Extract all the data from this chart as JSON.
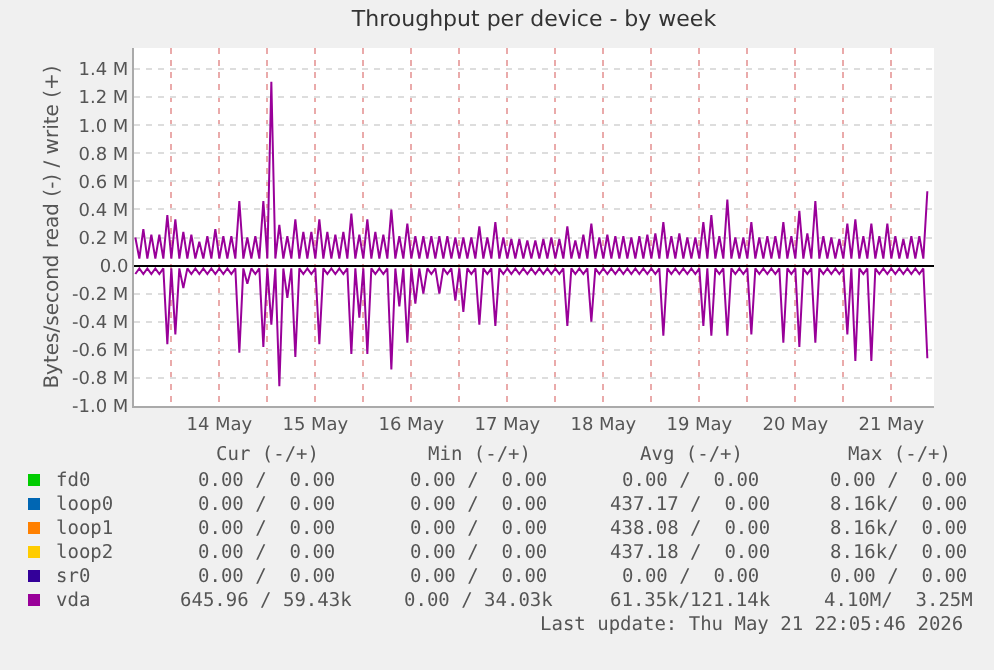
{
  "chart_data": {
    "type": "line",
    "title": "Throughput per device - by week",
    "ylabel": "Bytes/second read (-) / write (+)",
    "xlim": [
      "2026-05-13T14:40",
      "2026-05-21T22:40"
    ],
    "xticks": [
      {
        "value": "2026-05-14T00:00",
        "label": null
      },
      {
        "value": "2026-05-14T12:00",
        "label": "14 May"
      },
      {
        "value": "2026-05-15T00:00",
        "label": null
      },
      {
        "value": "2026-05-15T12:00",
        "label": "15 May"
      },
      {
        "value": "2026-05-16T00:00",
        "label": null
      },
      {
        "value": "2026-05-16T12:00",
        "label": "16 May"
      },
      {
        "value": "2026-05-17T00:00",
        "label": null
      },
      {
        "value": "2026-05-17T12:00",
        "label": "17 May"
      },
      {
        "value": "2026-05-18T00:00",
        "label": null
      },
      {
        "value": "2026-05-18T12:00",
        "label": "18 May"
      },
      {
        "value": "2026-05-19T00:00",
        "label": null
      },
      {
        "value": "2026-05-19T12:00",
        "label": "19 May"
      },
      {
        "value": "2026-05-20T00:00",
        "label": null
      },
      {
        "value": "2026-05-20T12:00",
        "label": "20 May"
      },
      {
        "value": "2026-05-21T00:00",
        "label": null
      },
      {
        "value": "2026-05-21T12:00",
        "label": "21 May"
      }
    ],
    "ylim": [
      -1.0,
      1.55
    ],
    "yticks": [
      {
        "value": -1.0,
        "label": "-1.0 M"
      },
      {
        "value": -0.8,
        "label": "-0.8 M"
      },
      {
        "value": -0.6,
        "label": "-0.6 M"
      },
      {
        "value": -0.4,
        "label": "-0.4 M"
      },
      {
        "value": -0.2,
        "label": "-0.2 M"
      },
      {
        "value": 0,
        "label": "0.0"
      },
      {
        "value": 0.2,
        "label": "0.2 M"
      },
      {
        "value": 0.4,
        "label": "0.4 M"
      },
      {
        "value": 0.6,
        "label": "0.6 M"
      },
      {
        "value": 0.8,
        "label": "0.8 M"
      },
      {
        "value": 1.0,
        "label": "1.0 M"
      },
      {
        "value": 1.2,
        "label": "1.2 M"
      },
      {
        "value": 1.4,
        "label": "1.4 M"
      }
    ],
    "grid": true,
    "legend": "bottom left",
    "x": [
      "2026-05-13T15:00",
      "2026-05-13T16:00",
      "2026-05-13T17:00",
      "2026-05-13T18:00",
      "2026-05-13T19:00",
      "2026-05-13T20:00",
      "2026-05-13T21:00",
      "2026-05-13T22:00",
      "2026-05-13T23:00",
      "2026-05-14T00:00",
      "2026-05-14T01:00",
      "2026-05-14T02:00",
      "2026-05-14T03:00",
      "2026-05-14T04:00",
      "2026-05-14T05:00",
      "2026-05-14T06:00",
      "2026-05-14T07:00",
      "2026-05-14T08:00",
      "2026-05-14T09:00",
      "2026-05-14T10:00",
      "2026-05-14T11:00",
      "2026-05-14T12:00",
      "2026-05-14T13:00",
      "2026-05-14T14:00",
      "2026-05-14T15:00",
      "2026-05-14T16:00",
      "2026-05-14T17:00",
      "2026-05-14T18:00",
      "2026-05-14T19:00",
      "2026-05-14T20:00",
      "2026-05-14T21:00",
      "2026-05-14T22:00",
      "2026-05-14T23:00",
      "2026-05-15T00:00",
      "2026-05-15T01:00",
      "2026-05-15T02:00",
      "2026-05-15T03:00",
      "2026-05-15T04:00",
      "2026-05-15T05:00",
      "2026-05-15T06:00",
      "2026-05-15T07:00",
      "2026-05-15T08:00",
      "2026-05-15T09:00",
      "2026-05-15T10:00",
      "2026-05-15T11:00",
      "2026-05-15T12:00",
      "2026-05-15T13:00",
      "2026-05-15T14:00",
      "2026-05-15T15:00",
      "2026-05-15T16:00",
      "2026-05-15T17:00",
      "2026-05-15T18:00",
      "2026-05-15T19:00",
      "2026-05-15T20:00",
      "2026-05-15T21:00",
      "2026-05-15T22:00",
      "2026-05-15T23:00",
      "2026-05-16T00:00",
      "2026-05-16T01:00",
      "2026-05-16T02:00",
      "2026-05-16T03:00",
      "2026-05-16T04:00",
      "2026-05-16T05:00",
      "2026-05-16T06:00",
      "2026-05-16T07:00",
      "2026-05-16T08:00",
      "2026-05-16T09:00",
      "2026-05-16T10:00",
      "2026-05-16T11:00",
      "2026-05-16T12:00",
      "2026-05-16T13:00",
      "2026-05-16T14:00",
      "2026-05-16T15:00",
      "2026-05-16T16:00",
      "2026-05-16T17:00",
      "2026-05-16T18:00",
      "2026-05-16T19:00",
      "2026-05-16T20:00",
      "2026-05-16T21:00",
      "2026-05-16T22:00",
      "2026-05-16T23:00",
      "2026-05-17T00:00",
      "2026-05-17T01:00",
      "2026-05-17T02:00",
      "2026-05-17T03:00",
      "2026-05-17T04:00",
      "2026-05-17T05:00",
      "2026-05-17T06:00",
      "2026-05-17T07:00",
      "2026-05-17T08:00",
      "2026-05-17T09:00",
      "2026-05-17T10:00",
      "2026-05-17T11:00",
      "2026-05-17T12:00",
      "2026-05-17T13:00",
      "2026-05-17T14:00",
      "2026-05-17T15:00",
      "2026-05-17T16:00",
      "2026-05-17T17:00",
      "2026-05-17T18:00",
      "2026-05-17T19:00",
      "2026-05-17T20:00",
      "2026-05-17T21:00",
      "2026-05-17T22:00",
      "2026-05-17T23:00",
      "2026-05-18T00:00",
      "2026-05-18T01:00",
      "2026-05-18T02:00",
      "2026-05-18T03:00",
      "2026-05-18T04:00",
      "2026-05-18T05:00",
      "2026-05-18T06:00",
      "2026-05-18T07:00",
      "2026-05-18T08:00",
      "2026-05-18T09:00",
      "2026-05-18T10:00",
      "2026-05-18T11:00",
      "2026-05-18T12:00",
      "2026-05-18T13:00",
      "2026-05-18T14:00",
      "2026-05-18T15:00",
      "2026-05-18T16:00",
      "2026-05-18T17:00",
      "2026-05-18T18:00",
      "2026-05-18T19:00",
      "2026-05-18T20:00",
      "2026-05-18T21:00",
      "2026-05-18T22:00",
      "2026-05-18T23:00",
      "2026-05-19T00:00",
      "2026-05-19T01:00",
      "2026-05-19T02:00",
      "2026-05-19T03:00",
      "2026-05-19T04:00",
      "2026-05-19T05:00",
      "2026-05-19T06:00",
      "2026-05-19T07:00",
      "2026-05-19T08:00",
      "2026-05-19T09:00",
      "2026-05-19T10:00",
      "2026-05-19T11:00",
      "2026-05-19T12:00",
      "2026-05-19T13:00",
      "2026-05-19T14:00",
      "2026-05-19T15:00",
      "2026-05-19T16:00",
      "2026-05-19T17:00",
      "2026-05-19T18:00",
      "2026-05-19T19:00",
      "2026-05-19T20:00",
      "2026-05-19T21:00",
      "2026-05-19T22:00",
      "2026-05-19T23:00",
      "2026-05-20T00:00",
      "2026-05-20T01:00",
      "2026-05-20T02:00",
      "2026-05-20T03:00",
      "2026-05-20T04:00",
      "2026-05-20T05:00",
      "2026-05-20T06:00",
      "2026-05-20T07:00",
      "2026-05-20T08:00",
      "2026-05-20T09:00",
      "2026-05-20T10:00",
      "2026-05-20T11:00",
      "2026-05-20T12:00",
      "2026-05-20T13:00",
      "2026-05-20T14:00",
      "2026-05-20T15:00",
      "2026-05-20T16:00",
      "2026-05-20T17:00",
      "2026-05-20T18:00",
      "2026-05-20T19:00",
      "2026-05-20T20:00",
      "2026-05-20T21:00",
      "2026-05-20T22:00",
      "2026-05-20T23:00",
      "2026-05-21T00:00",
      "2026-05-21T01:00",
      "2026-05-21T02:00",
      "2026-05-21T03:00",
      "2026-05-21T04:00",
      "2026-05-21T05:00",
      "2026-05-21T06:00",
      "2026-05-21T07:00",
      "2026-05-21T08:00",
      "2026-05-21T09:00",
      "2026-05-21T10:00",
      "2026-05-21T11:00",
      "2026-05-21T12:00",
      "2026-05-21T13:00",
      "2026-05-21T14:00",
      "2026-05-21T15:00",
      "2026-05-21T16:00",
      "2026-05-21T17:00",
      "2026-05-21T18:00",
      "2026-05-21T19:00",
      "2026-05-21T20:00",
      "2026-05-21T21:00"
    ],
    "series": [
      {
        "name": "fd0",
        "color": "#00cc00",
        "values": [
          null,
          null,
          null,
          null,
          null,
          null,
          null,
          null,
          null,
          null,
          null,
          null,
          null,
          null,
          null,
          null,
          null,
          null,
          null,
          null,
          null,
          null,
          null,
          null,
          null,
          null,
          null,
          null,
          null,
          null,
          null,
          null,
          null,
          null,
          null,
          null,
          null,
          null,
          null,
          null,
          null,
          null,
          null,
          null,
          null,
          null,
          null,
          null,
          null,
          null,
          null,
          null,
          null,
          null,
          null,
          null,
          null,
          null,
          null,
          null,
          null,
          null,
          null,
          null,
          null,
          null,
          null,
          null,
          null,
          null,
          null,
          null,
          null,
          null,
          null,
          null,
          null,
          null,
          null,
          null,
          null,
          null,
          null,
          null,
          null,
          null,
          null,
          null,
          null,
          null,
          null,
          null,
          null,
          null,
          null,
          null,
          null,
          null,
          null,
          null,
          null,
          null,
          null,
          null,
          null,
          null,
          null,
          null,
          null,
          null,
          null,
          null,
          null,
          null,
          null,
          null,
          null,
          null,
          null,
          null,
          null,
          null,
          null,
          null,
          null,
          null,
          null,
          null,
          null,
          null,
          null,
          null,
          null,
          null,
          null,
          null,
          null,
          null,
          null,
          null,
          null,
          null,
          null,
          null,
          null,
          null,
          null,
          null,
          null,
          null,
          null,
          null,
          null,
          null,
          null,
          null,
          null,
          null,
          null,
          null,
          null,
          null,
          null,
          null,
          null,
          null,
          null,
          null,
          null,
          null,
          null,
          null,
          null,
          null,
          null,
          null,
          null,
          null,
          null,
          null,
          null,
          null,
          null,
          null,
          null,
          null,
          null,
          null,
          null,
          null,
          null,
          null,
          null,
          null,
          null,
          null,
          null,
          null,
          null
        ]
      },
      {
        "name": "loop0",
        "color": "#0066b3",
        "values": [
          null,
          null,
          null,
          null,
          null,
          null,
          null,
          null,
          null,
          null,
          null,
          null,
          null,
          null,
          null,
          null,
          null,
          null,
          null,
          null,
          null,
          null,
          null,
          null,
          null,
          null,
          null,
          null,
          null,
          null,
          null,
          null,
          null,
          null,
          null,
          null,
          null,
          null,
          null,
          null,
          null,
          null,
          null,
          null,
          null,
          null,
          null,
          null,
          null,
          null,
          null,
          null,
          null,
          null,
          null,
          null,
          null,
          null,
          null,
          null,
          null,
          null,
          null,
          null,
          null,
          null,
          null,
          null,
          null,
          null,
          null,
          null,
          null,
          null,
          null,
          null,
          null,
          null,
          null,
          null,
          null,
          null,
          null,
          null,
          null,
          null,
          null,
          null,
          null,
          null,
          null,
          null,
          null,
          null,
          null,
          null,
          null,
          null,
          null,
          null,
          null,
          null,
          null,
          null,
          null,
          null,
          null,
          null,
          null,
          null,
          null,
          null,
          null,
          null,
          null,
          null,
          null,
          null,
          null,
          null,
          null,
          null,
          null,
          null,
          null,
          null,
          null,
          null,
          null,
          null,
          null,
          null,
          null,
          null,
          null,
          null,
          null,
          null,
          null,
          null,
          null,
          null,
          null,
          null,
          null,
          null,
          null,
          null,
          null,
          null,
          null,
          null,
          null,
          null,
          null,
          null,
          null,
          null,
          null,
          null,
          null,
          null,
          null,
          null,
          null,
          null,
          null,
          null,
          null,
          null,
          null,
          null,
          null,
          null,
          null,
          null,
          null,
          null,
          null,
          null,
          null,
          null,
          null,
          null,
          null,
          null,
          null,
          null,
          null,
          null,
          null,
          null,
          null,
          null,
          null,
          null,
          null,
          null,
          null
        ]
      },
      {
        "name": "loop1",
        "color": "#ff8000",
        "values": [
          null,
          null,
          null,
          null,
          null,
          null,
          null,
          null,
          null,
          null,
          null,
          null,
          null,
          null,
          null,
          null,
          null,
          null,
          null,
          null,
          null,
          null,
          null,
          null,
          null,
          null,
          null,
          null,
          null,
          null,
          null,
          null,
          null,
          null,
          null,
          null,
          null,
          null,
          null,
          null,
          null,
          null,
          null,
          null,
          null,
          null,
          null,
          null,
          null,
          null,
          null,
          null,
          null,
          null,
          null,
          null,
          null,
          null,
          null,
          null,
          null,
          null,
          null,
          null,
          null,
          null,
          null,
          null,
          null,
          null,
          null,
          null,
          null,
          null,
          null,
          null,
          null,
          null,
          null,
          null,
          null,
          null,
          null,
          null,
          null,
          null,
          null,
          null,
          null,
          null,
          null,
          null,
          null,
          null,
          null,
          null,
          null,
          null,
          null,
          null,
          null,
          null,
          null,
          null,
          null,
          null,
          null,
          null,
          null,
          null,
          null,
          null,
          null,
          null,
          null,
          null,
          null,
          null,
          null,
          null,
          null,
          null,
          null,
          null,
          null,
          null,
          null,
          null,
          null,
          null,
          null,
          null,
          null,
          null,
          null,
          null,
          null,
          null,
          null,
          null,
          null,
          null,
          null,
          null,
          null,
          null,
          null,
          null,
          null,
          null,
          null,
          null,
          null,
          null,
          null,
          null,
          null,
          null,
          null,
          null,
          null,
          null,
          null,
          null,
          null,
          null,
          null,
          null,
          null,
          null,
          null,
          null,
          null,
          null,
          null,
          null,
          null,
          null,
          null,
          null,
          null,
          null,
          null,
          null,
          null,
          null,
          null,
          null,
          null,
          null,
          null,
          null,
          null,
          null,
          null,
          null,
          null,
          null,
          null
        ]
      },
      {
        "name": "loop2",
        "color": "#ffcc00",
        "values": [
          null,
          null,
          null,
          null,
          null,
          null,
          null,
          null,
          null,
          null,
          null,
          null,
          null,
          null,
          null,
          null,
          null,
          null,
          null,
          null,
          null,
          null,
          null,
          null,
          null,
          null,
          null,
          null,
          null,
          null,
          null,
          null,
          null,
          null,
          null,
          null,
          null,
          null,
          null,
          null,
          null,
          null,
          null,
          null,
          null,
          null,
          null,
          null,
          null,
          null,
          null,
          null,
          null,
          null,
          null,
          null,
          null,
          null,
          null,
          null,
          null,
          null,
          null,
          null,
          null,
          null,
          null,
          null,
          null,
          null,
          null,
          null,
          null,
          null,
          null,
          null,
          null,
          null,
          null,
          null,
          null,
          null,
          null,
          null,
          null,
          null,
          null,
          null,
          null,
          null,
          null,
          null,
          null,
          null,
          null,
          null,
          null,
          null,
          null,
          null,
          null,
          null,
          null,
          null,
          null,
          null,
          null,
          null,
          null,
          null,
          null,
          null,
          null,
          null,
          null,
          null,
          null,
          null,
          null,
          null,
          null,
          null,
          null,
          null,
          null,
          null,
          null,
          null,
          null,
          null,
          null,
          null,
          null,
          null,
          null,
          null,
          null,
          null,
          null,
          null,
          null,
          null,
          null,
          null,
          null,
          null,
          null,
          null,
          null,
          null,
          null,
          null,
          null,
          null,
          null,
          null,
          null,
          null,
          null,
          null,
          null,
          null,
          null,
          null,
          null,
          null,
          null,
          null,
          null,
          null,
          null,
          null,
          null,
          null,
          null,
          null,
          null,
          null,
          null,
          null,
          null,
          null,
          null,
          null,
          null,
          null,
          null,
          null,
          null,
          null,
          null,
          null,
          null,
          null,
          null,
          null,
          null,
          null,
          null
        ]
      },
      {
        "name": "sr0",
        "color": "#330099",
        "values": [
          null,
          null,
          null,
          null,
          null,
          null,
          null,
          null,
          null,
          null,
          null,
          null,
          null,
          null,
          null,
          null,
          null,
          null,
          null,
          null,
          null,
          null,
          null,
          null,
          null,
          null,
          null,
          null,
          null,
          null,
          null,
          null,
          null,
          null,
          null,
          null,
          null,
          null,
          null,
          null,
          null,
          null,
          null,
          null,
          null,
          null,
          null,
          null,
          null,
          null,
          null,
          null,
          null,
          null,
          null,
          null,
          null,
          null,
          null,
          null,
          null,
          null,
          null,
          null,
          null,
          null,
          null,
          null,
          null,
          null,
          null,
          null,
          null,
          null,
          null,
          null,
          null,
          null,
          null,
          null,
          null,
          null,
          null,
          null,
          null,
          null,
          null,
          null,
          null,
          null,
          null,
          null,
          null,
          null,
          null,
          null,
          null,
          null,
          null,
          null,
          null,
          null,
          null,
          null,
          null,
          null,
          null,
          null,
          null,
          null,
          null,
          null,
          null,
          null,
          null,
          null,
          null,
          null,
          null,
          null,
          null,
          null,
          null,
          null,
          null,
          null,
          null,
          null,
          null,
          null,
          null,
          null,
          null,
          null,
          null,
          null,
          null,
          null,
          null,
          null,
          null,
          null,
          null,
          null,
          null,
          null,
          null,
          null,
          null,
          null,
          null,
          null,
          null,
          null,
          null,
          null,
          null,
          null,
          null,
          null,
          null,
          null,
          null,
          null,
          null,
          null,
          null,
          null,
          null,
          null,
          null,
          null,
          null,
          null,
          null,
          null,
          null,
          null,
          null,
          null,
          null,
          null,
          null,
          null,
          null,
          null,
          null,
          null,
          null,
          null,
          null,
          null,
          null,
          null,
          null,
          null,
          null,
          null,
          null
        ]
      },
      {
        "name": "vda",
        "color": "#990099",
        "values": [
          0.2,
          0.05,
          0.26,
          0.05,
          0.22,
          0.05,
          0.22,
          0.05,
          0.36,
          0.05,
          0.33,
          0.05,
          0.24,
          0.05,
          0.22,
          0.05,
          0.17,
          0.05,
          0.21,
          0.05,
          0.26,
          0.05,
          0.21,
          0.05,
          0.21,
          0.05,
          0.46,
          0.05,
          0.2,
          0.05,
          0.21,
          0.05,
          0.46,
          0.05,
          1.31,
          0.05,
          0.29,
          0.05,
          0.21,
          0.05,
          0.33,
          0.05,
          0.24,
          0.05,
          0.24,
          0.05,
          0.33,
          0.05,
          0.24,
          0.05,
          0.22,
          0.05,
          0.24,
          0.05,
          0.37,
          0.05,
          0.22,
          0.05,
          0.33,
          0.05,
          0.24,
          0.05,
          0.22,
          0.05,
          0.4,
          0.05,
          0.21,
          0.05,
          0.3,
          0.05,
          0.21,
          0.05,
          0.21,
          0.05,
          0.21,
          0.05,
          0.21,
          0.05,
          0.21,
          0.05,
          0.2,
          0.05,
          0.2,
          0.05,
          0.2,
          0.05,
          0.28,
          0.05,
          0.2,
          0.05,
          0.31,
          0.05,
          0.2,
          0.05,
          0.19,
          0.05,
          0.19,
          0.05,
          0.18,
          0.05,
          0.18,
          0.05,
          0.19,
          0.05,
          0.2,
          0.05,
          0.19,
          0.05,
          0.28,
          0.05,
          0.18,
          0.05,
          0.22,
          0.05,
          0.3,
          0.05,
          0.2,
          0.05,
          0.22,
          0.05,
          0.21,
          0.05,
          0.21,
          0.05,
          0.2,
          0.05,
          0.21,
          0.05,
          0.22,
          0.05,
          0.23,
          0.05,
          0.31,
          0.05,
          0.21,
          0.05,
          0.23,
          0.05,
          0.2,
          0.05,
          0.2,
          0.05,
          0.31,
          0.05,
          0.36,
          0.05,
          0.21,
          0.05,
          0.47,
          0.05,
          0.2,
          0.05,
          0.2,
          0.05,
          0.31,
          0.05,
          0.2,
          0.05,
          0.21,
          0.05,
          0.21,
          0.05,
          0.31,
          0.05,
          0.21,
          0.05,
          0.39,
          0.05,
          0.23,
          0.05,
          0.46,
          0.05,
          0.21,
          0.05,
          0.2,
          0.05,
          0.19,
          0.05,
          0.3,
          0.05,
          0.33,
          0.05,
          0.21,
          0.05,
          0.3,
          0.05,
          0.21,
          0.05,
          0.3,
          0.05,
          0.21,
          0.05,
          0.19,
          0.05,
          0.21,
          0.05,
          0.21,
          0.05,
          0.53
        ]
      },
      {
        "color": "#990099",
        "values": [
          -0.06,
          -0.02,
          -0.06,
          -0.02,
          -0.06,
          -0.02,
          -0.06,
          -0.02,
          -0.56,
          -0.02,
          -0.49,
          -0.02,
          -0.16,
          -0.02,
          -0.06,
          -0.02,
          -0.06,
          -0.02,
          -0.06,
          -0.02,
          -0.06,
          -0.02,
          -0.06,
          -0.02,
          -0.06,
          -0.02,
          -0.62,
          -0.02,
          -0.13,
          -0.02,
          -0.06,
          -0.02,
          -0.58,
          -0.02,
          -0.42,
          -0.02,
          -0.86,
          -0.02,
          -0.23,
          -0.02,
          -0.65,
          -0.02,
          -0.06,
          -0.02,
          -0.06,
          -0.02,
          -0.56,
          -0.02,
          -0.06,
          -0.02,
          -0.06,
          -0.02,
          -0.06,
          -0.02,
          -0.63,
          -0.02,
          -0.37,
          -0.02,
          -0.63,
          -0.02,
          -0.06,
          -0.02,
          -0.06,
          -0.02,
          -0.74,
          -0.02,
          -0.29,
          -0.02,
          -0.55,
          -0.02,
          -0.27,
          -0.02,
          -0.2,
          -0.02,
          -0.06,
          -0.02,
          -0.2,
          -0.02,
          -0.06,
          -0.02,
          -0.25,
          -0.02,
          -0.33,
          -0.02,
          -0.06,
          -0.02,
          -0.42,
          -0.02,
          -0.06,
          -0.02,
          -0.43,
          -0.02,
          -0.06,
          -0.02,
          -0.06,
          -0.02,
          -0.06,
          -0.02,
          -0.06,
          -0.02,
          -0.06,
          -0.02,
          -0.06,
          -0.02,
          -0.06,
          -0.02,
          -0.06,
          -0.02,
          -0.43,
          -0.02,
          -0.06,
          -0.02,
          -0.06,
          -0.02,
          -0.4,
          -0.02,
          -0.06,
          -0.02,
          -0.06,
          -0.02,
          -0.06,
          -0.02,
          -0.06,
          -0.02,
          -0.06,
          -0.02,
          -0.06,
          -0.02,
          -0.06,
          -0.02,
          -0.06,
          -0.02,
          -0.5,
          -0.02,
          -0.06,
          -0.02,
          -0.06,
          -0.02,
          -0.06,
          -0.02,
          -0.06,
          -0.02,
          -0.43,
          -0.02,
          -0.5,
          -0.02,
          -0.06,
          -0.02,
          -0.5,
          -0.02,
          -0.06,
          -0.02,
          -0.06,
          -0.02,
          -0.49,
          -0.02,
          -0.06,
          -0.02,
          -0.06,
          -0.02,
          -0.06,
          -0.02,
          -0.55,
          -0.02,
          -0.06,
          -0.02,
          -0.58,
          -0.02,
          -0.06,
          -0.02,
          -0.55,
          -0.02,
          -0.06,
          -0.02,
          -0.06,
          -0.02,
          -0.06,
          -0.02,
          -0.49,
          -0.02,
          -0.68,
          -0.02,
          -0.06,
          -0.02,
          -0.68,
          -0.02,
          -0.06,
          -0.02,
          -0.06,
          -0.02,
          -0.06,
          -0.02,
          -0.06,
          -0.02,
          -0.06,
          -0.02,
          -0.06,
          -0.02,
          -0.66
        ]
      }
    ],
    "annotations": [
      "Cur (-/+)",
      "Min (-/+)",
      "Avg (-/+)",
      "Max (-/+)",
      "0.00 /  0.00",
      "0.00 /  0.00",
      "0.00 /  0.00",
      "0.00 /  0.00",
      "0.00 /  0.00",
      "0.00 /  0.00",
      "437.17 /  0.00",
      "8.16k/  0.00",
      "0.00 /  0.00",
      "0.00 /  0.00",
      "438.08 /  0.00",
      "8.16k/  0.00",
      "0.00 /  0.00",
      "0.00 /  0.00",
      "437.18 /  0.00",
      "8.16k/  0.00",
      "0.00 /  0.00",
      "0.00 /  0.00",
      "0.00 /  0.00",
      "0.00 /  0.00",
      "645.96 / 59.43k",
      "0.00 / 34.03k",
      "61.35k/121.14k",
      "4.10M/  3.25M",
      "Last update: Thu May 21 22:05:46 2026"
    ]
  }
}
